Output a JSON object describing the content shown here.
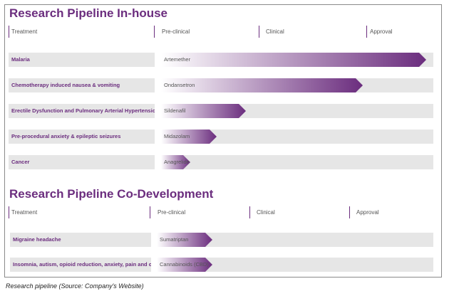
{
  "colors": {
    "accent": "#6b2d7e",
    "row_bg": "#e6e6e6"
  },
  "inhouse": {
    "title": "Research Pipeline In-house",
    "headers": [
      "Treatment",
      "Pre-clinical",
      "Clinical",
      "Approval"
    ],
    "rows": [
      {
        "indication": "Malaria",
        "drug": "Artemether",
        "progress": 1.0
      },
      {
        "indication": "Chemotherapy induced nausea & vomiting",
        "drug": "Ondansetron",
        "progress": 0.76
      },
      {
        "indication": "Erectile Dysfunction and Pulmonary Arterial Hypertension",
        "drug": "Sildenafil",
        "progress": 0.32
      },
      {
        "indication": "Pre-procedural anxiety & epileptic seizures",
        "drug": "Midazolam",
        "progress": 0.21
      },
      {
        "indication": "Cancer",
        "drug": "Anagrelide",
        "progress": 0.11
      }
    ]
  },
  "codev": {
    "title": "Research Pipeline Co-Development",
    "headers": [
      "Treatment",
      "Pre-clinical",
      "Clinical",
      "Approval"
    ],
    "rows": [
      {
        "indication": "Migraine headache",
        "drug": "Sumatriptan",
        "progress": 0.2
      },
      {
        "indication": "Insomnia, autism, opioid reduction, anxiety, pain and cancer",
        "drug": "Cannabinoids (CBD)",
        "progress": 0.2
      }
    ]
  },
  "caption": "Research pipeline (Source: Company's Website)"
}
